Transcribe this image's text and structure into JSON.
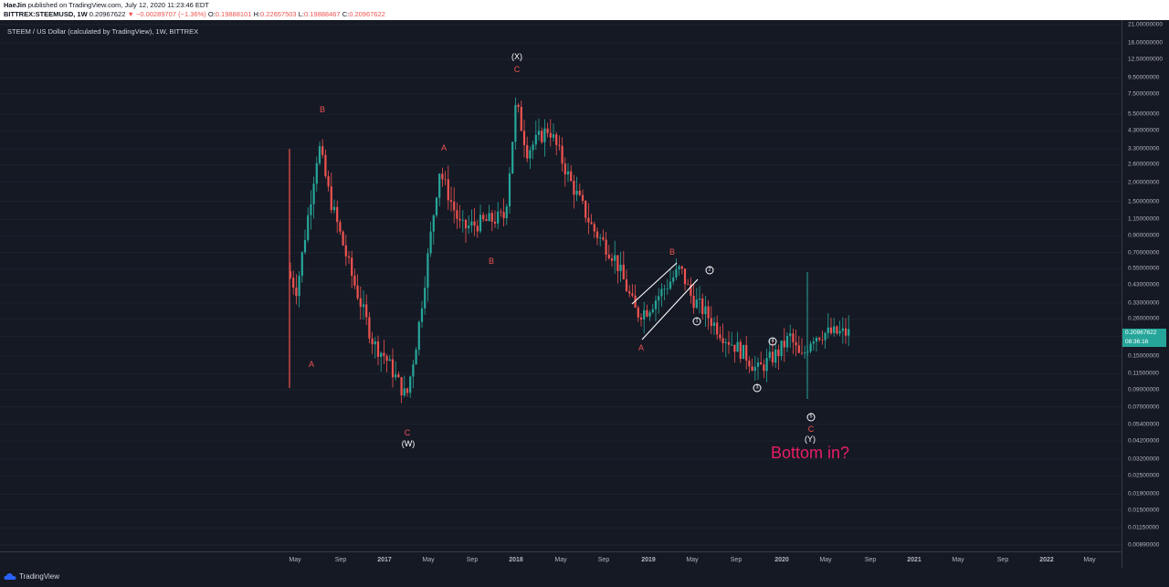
{
  "header": {
    "author": "HaeJin",
    "published_text": "published on TradingView.com, July 12, 2020 11:23:46 EDT",
    "symbol": "BITTREX:STEEMUSD, 1W",
    "last": "0.20967622",
    "change": "−0.00289707 (−1.36%)",
    "o_label": "O:",
    "o": "0.19888101",
    "h_label": "H:",
    "h": "0.22657503",
    "l_label": "L:",
    "l": "0.19888467",
    "c_label": "C:",
    "c": "0.20967622"
  },
  "chart_title": "STEEM / US Dollar (calculated by TradingView), 1W, BITTREX",
  "price_axis": {
    "labels": [
      "21.00000000",
      "16.00000000",
      "12.50000000",
      "9.50000000",
      "7.50000000",
      "5.50000000",
      "4.30000000",
      "3.30000000",
      "2.60000000",
      "2.00000000",
      "1.50000000",
      "1.15000000",
      "0.90000000",
      "0.70000000",
      "0.55000000",
      "0.43000000",
      "0.33000000",
      "0.26000000",
      "0.20000000",
      "0.15000000",
      "0.11500000",
      "0.09000000",
      "0.07000000",
      "0.05400000",
      "0.04200000",
      "0.03200000",
      "0.02500000",
      "0.01900000",
      "0.01500000",
      "0.01150000",
      "0.00890000"
    ],
    "current_price": "0.20967622",
    "countdown": "08:36:16",
    "scale": "log"
  },
  "time_axis": {
    "labels": [
      "May",
      "Sep",
      "2017",
      "May",
      "Sep",
      "2018",
      "May",
      "Sep",
      "2019",
      "May",
      "Sep",
      "2020",
      "May",
      "Sep",
      "2021",
      "May",
      "Sep",
      "2022",
      "May"
    ]
  },
  "annotations": {
    "wave_labels": [
      {
        "text": "A",
        "color": "red"
      },
      {
        "text": "B",
        "color": "red"
      },
      {
        "text": "C",
        "color": "red"
      },
      {
        "text": "(W)",
        "color": "white"
      },
      {
        "text": "A",
        "color": "red"
      },
      {
        "text": "B",
        "color": "red"
      },
      {
        "text": "C",
        "color": "red"
      },
      {
        "text": "(X)",
        "color": "white"
      },
      {
        "text": "A",
        "color": "red"
      },
      {
        "text": "B",
        "color": "red"
      },
      {
        "text": "C",
        "color": "red"
      },
      {
        "text": "(Y)",
        "color": "white"
      }
    ],
    "circled": [
      "1",
      "2",
      "3",
      "4",
      "5"
    ],
    "bottom_text": "Bottom in?"
  },
  "colors": {
    "background": "#151924",
    "up": "#26a69a",
    "down": "#ef5350",
    "note": "#e91e63"
  },
  "footer": {
    "brand": "TradingView"
  },
  "chart_data": {
    "type": "candlestick",
    "interval": "1W",
    "y_scale": "log",
    "x": [
      "2016-04",
      "2016-05",
      "2016-07",
      "2016-08",
      "2016-10",
      "2016-12",
      "2017-01",
      "2017-03",
      "2017-04",
      "2017-06",
      "2017-08",
      "2017-10",
      "2017-12",
      "2018-01",
      "2018-02",
      "2018-04",
      "2018-06",
      "2018-08",
      "2018-10",
      "2018-12",
      "2019-01",
      "2019-03",
      "2019-04",
      "2019-05",
      "2019-06",
      "2019-08",
      "2019-10",
      "2019-11",
      "2020-01",
      "2020-02",
      "2020-03",
      "2020-04",
      "2020-05",
      "2020-07"
    ],
    "close": [
      0.55,
      0.4,
      3.5,
      1.6,
      0.5,
      0.18,
      0.15,
      0.08,
      0.2,
      2.4,
      1.0,
      1.1,
      1.2,
      6.5,
      3.2,
      4.5,
      2.0,
      1.0,
      0.65,
      0.28,
      0.3,
      0.45,
      0.55,
      0.36,
      0.3,
      0.2,
      0.15,
      0.12,
      0.16,
      0.2,
      0.14,
      0.2,
      0.21,
      0.21
    ],
    "swing_points": [
      {
        "label": "A",
        "date": "2016-07",
        "price": 0.17
      },
      {
        "label": "B",
        "date": "2016-09",
        "price": 4.6
      },
      {
        "label": "C (W)",
        "date": "2017-03",
        "price": 0.075
      },
      {
        "label": "A",
        "date": "2017-06",
        "price": 2.8
      },
      {
        "label": "B",
        "date": "2017-10",
        "price": 0.85
      },
      {
        "label": "C (X)",
        "date": "2018-01",
        "price": 8.5
      },
      {
        "label": "A",
        "date": "2018-12",
        "price": 0.22
      },
      {
        "label": "B",
        "date": "2019-04",
        "price": 0.58
      },
      {
        "label": "C (Y)",
        "date": "2020-03",
        "price": 0.08
      }
    ]
  }
}
